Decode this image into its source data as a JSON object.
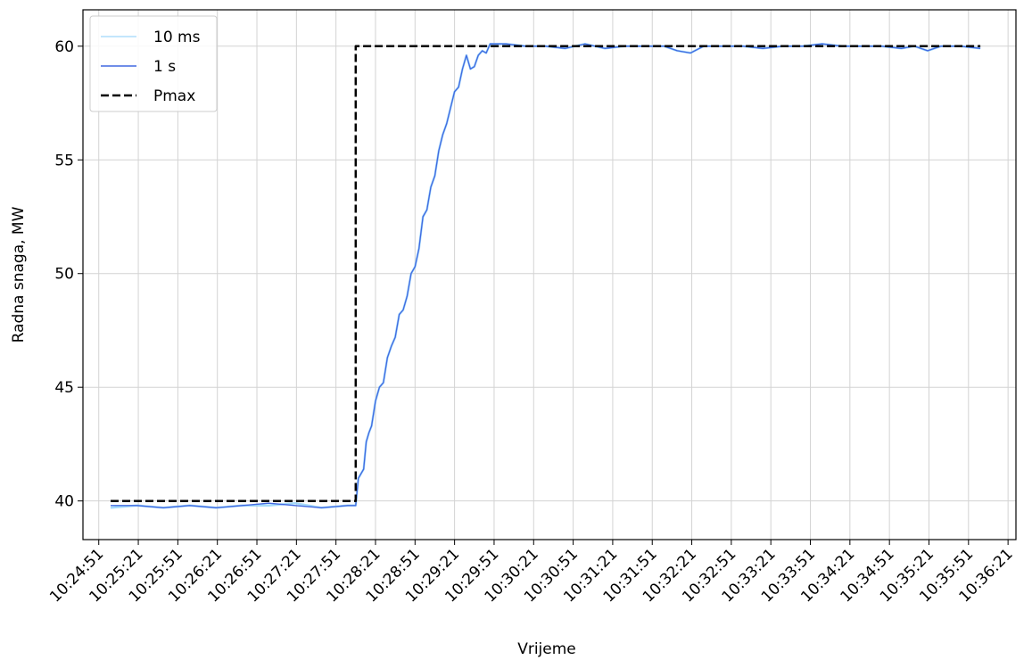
{
  "chart_data": {
    "type": "line",
    "title": "",
    "xlabel": "Vrijeme",
    "ylabel": "Radna snaga, MW",
    "x_ticks": [
      "10:24:51",
      "10:25:21",
      "10:25:51",
      "10:26:21",
      "10:26:51",
      "10:27:21",
      "10:27:51",
      "10:28:21",
      "10:28:51",
      "10:29:21",
      "10:29:51",
      "10:30:21",
      "10:30:51",
      "10:31:21",
      "10:31:51",
      "10:32:21",
      "10:32:51",
      "10:33:21",
      "10:33:51",
      "10:34:21",
      "10:34:51",
      "10:35:21",
      "10:35:51",
      "10:36:21"
    ],
    "xlim": [
      "10:24:39",
      "10:36:27"
    ],
    "y_ticks": [
      40,
      45,
      50,
      55,
      60
    ],
    "ylim": [
      38.3,
      61.6
    ],
    "grid": true,
    "legend_position": "top-left",
    "series": [
      {
        "name": "10 ms",
        "color": "#87cefa",
        "line_style": "solid",
        "points": [
          [
            "10:25:00",
            39.7
          ],
          [
            "10:25:20",
            39.8
          ],
          [
            "10:25:40",
            39.7
          ],
          [
            "10:26:00",
            39.8
          ],
          [
            "10:26:20",
            39.7
          ],
          [
            "10:26:40",
            39.8
          ],
          [
            "10:27:00",
            39.8
          ],
          [
            "10:27:20",
            39.9
          ],
          [
            "10:27:40",
            39.7
          ],
          [
            "10:28:00",
            39.8
          ],
          [
            "10:28:06",
            39.8
          ],
          [
            "10:28:08",
            41.0
          ],
          [
            "10:28:12",
            41.4
          ],
          [
            "10:28:14",
            42.6
          ],
          [
            "10:28:16",
            43.0
          ],
          [
            "10:28:18",
            43.3
          ],
          [
            "10:28:21",
            44.4
          ],
          [
            "10:28:24",
            45.0
          ],
          [
            "10:28:27",
            45.2
          ],
          [
            "10:28:30",
            46.3
          ],
          [
            "10:28:33",
            46.8
          ],
          [
            "10:28:36",
            47.2
          ],
          [
            "10:28:39",
            48.2
          ],
          [
            "10:28:42",
            48.4
          ],
          [
            "10:28:45",
            49.0
          ],
          [
            "10:28:48",
            50.0
          ],
          [
            "10:28:51",
            50.3
          ],
          [
            "10:28:54",
            51.1
          ],
          [
            "10:28:57",
            52.5
          ],
          [
            "10:29:00",
            52.8
          ],
          [
            "10:29:03",
            53.8
          ],
          [
            "10:29:06",
            54.3
          ],
          [
            "10:29:09",
            55.4
          ],
          [
            "10:29:12",
            56.1
          ],
          [
            "10:29:15",
            56.6
          ],
          [
            "10:29:18",
            57.3
          ],
          [
            "10:29:21",
            58.0
          ],
          [
            "10:29:24",
            58.2
          ],
          [
            "10:29:27",
            59.0
          ],
          [
            "10:29:30",
            59.6
          ],
          [
            "10:29:33",
            59.0
          ],
          [
            "10:29:36",
            59.1
          ],
          [
            "10:29:39",
            59.6
          ],
          [
            "10:29:42",
            59.8
          ],
          [
            "10:29:45",
            59.7
          ],
          [
            "10:29:48",
            60.1
          ],
          [
            "10:30:00",
            60.1
          ],
          [
            "10:30:15",
            60.0
          ],
          [
            "10:30:30",
            60.0
          ],
          [
            "10:30:45",
            59.9
          ],
          [
            "10:31:00",
            60.1
          ],
          [
            "10:31:15",
            59.9
          ],
          [
            "10:31:30",
            60.0
          ],
          [
            "10:31:45",
            60.0
          ],
          [
            "10:32:00",
            60.0
          ],
          [
            "10:32:10",
            59.8
          ],
          [
            "10:32:20",
            59.7
          ],
          [
            "10:32:30",
            60.0
          ],
          [
            "10:32:45",
            60.0
          ],
          [
            "10:33:00",
            60.0
          ],
          [
            "10:33:15",
            59.9
          ],
          [
            "10:33:30",
            60.0
          ],
          [
            "10:33:45",
            60.0
          ],
          [
            "10:34:00",
            60.1
          ],
          [
            "10:34:15",
            60.0
          ],
          [
            "10:34:30",
            60.0
          ],
          [
            "10:34:45",
            60.0
          ],
          [
            "10:35:00",
            59.9
          ],
          [
            "10:35:10",
            60.0
          ],
          [
            "10:35:20",
            59.8
          ],
          [
            "10:35:30",
            60.0
          ],
          [
            "10:35:45",
            60.0
          ],
          [
            "10:36:00",
            59.9
          ]
        ]
      },
      {
        "name": "1 s",
        "color": "#4169e1",
        "line_style": "solid",
        "points": [
          [
            "10:25:00",
            39.8
          ],
          [
            "10:25:20",
            39.8
          ],
          [
            "10:25:40",
            39.7
          ],
          [
            "10:26:00",
            39.8
          ],
          [
            "10:26:20",
            39.7
          ],
          [
            "10:26:40",
            39.8
          ],
          [
            "10:27:00",
            39.9
          ],
          [
            "10:27:20",
            39.8
          ],
          [
            "10:27:40",
            39.7
          ],
          [
            "10:28:00",
            39.8
          ],
          [
            "10:28:06",
            39.8
          ],
          [
            "10:28:08",
            41.0
          ],
          [
            "10:28:12",
            41.4
          ],
          [
            "10:28:14",
            42.6
          ],
          [
            "10:28:16",
            43.0
          ],
          [
            "10:28:18",
            43.3
          ],
          [
            "10:28:21",
            44.4
          ],
          [
            "10:28:24",
            45.0
          ],
          [
            "10:28:27",
            45.2
          ],
          [
            "10:28:30",
            46.3
          ],
          [
            "10:28:33",
            46.8
          ],
          [
            "10:28:36",
            47.2
          ],
          [
            "10:28:39",
            48.2
          ],
          [
            "10:28:42",
            48.4
          ],
          [
            "10:28:45",
            49.0
          ],
          [
            "10:28:48",
            50.0
          ],
          [
            "10:28:51",
            50.3
          ],
          [
            "10:28:54",
            51.1
          ],
          [
            "10:28:57",
            52.5
          ],
          [
            "10:29:00",
            52.8
          ],
          [
            "10:29:03",
            53.8
          ],
          [
            "10:29:06",
            54.3
          ],
          [
            "10:29:09",
            55.4
          ],
          [
            "10:29:12",
            56.1
          ],
          [
            "10:29:15",
            56.6
          ],
          [
            "10:29:18",
            57.3
          ],
          [
            "10:29:21",
            58.0
          ],
          [
            "10:29:24",
            58.2
          ],
          [
            "10:29:27",
            59.0
          ],
          [
            "10:29:30",
            59.6
          ],
          [
            "10:29:33",
            59.0
          ],
          [
            "10:29:36",
            59.1
          ],
          [
            "10:29:39",
            59.6
          ],
          [
            "10:29:42",
            59.8
          ],
          [
            "10:29:45",
            59.7
          ],
          [
            "10:29:48",
            60.1
          ],
          [
            "10:30:00",
            60.1
          ],
          [
            "10:30:15",
            60.0
          ],
          [
            "10:30:30",
            60.0
          ],
          [
            "10:30:45",
            59.9
          ],
          [
            "10:31:00",
            60.1
          ],
          [
            "10:31:15",
            59.9
          ],
          [
            "10:31:30",
            60.0
          ],
          [
            "10:31:45",
            60.0
          ],
          [
            "10:32:00",
            60.0
          ],
          [
            "10:32:10",
            59.8
          ],
          [
            "10:32:20",
            59.7
          ],
          [
            "10:32:30",
            60.0
          ],
          [
            "10:32:45",
            60.0
          ],
          [
            "10:33:00",
            60.0
          ],
          [
            "10:33:15",
            59.9
          ],
          [
            "10:33:30",
            60.0
          ],
          [
            "10:33:45",
            60.0
          ],
          [
            "10:34:00",
            60.1
          ],
          [
            "10:34:15",
            60.0
          ],
          [
            "10:34:30",
            60.0
          ],
          [
            "10:34:45",
            60.0
          ],
          [
            "10:35:00",
            59.9
          ],
          [
            "10:35:10",
            60.0
          ],
          [
            "10:35:20",
            59.8
          ],
          [
            "10:35:30",
            60.0
          ],
          [
            "10:35:45",
            60.0
          ],
          [
            "10:36:00",
            59.9
          ]
        ]
      },
      {
        "name": "Pmax",
        "color": "#000000",
        "line_style": "dashed",
        "points": [
          [
            "10:25:00",
            40.0
          ],
          [
            "10:28:06",
            40.0
          ],
          [
            "10:28:06",
            60.0
          ],
          [
            "10:36:00",
            60.0
          ]
        ]
      }
    ]
  }
}
